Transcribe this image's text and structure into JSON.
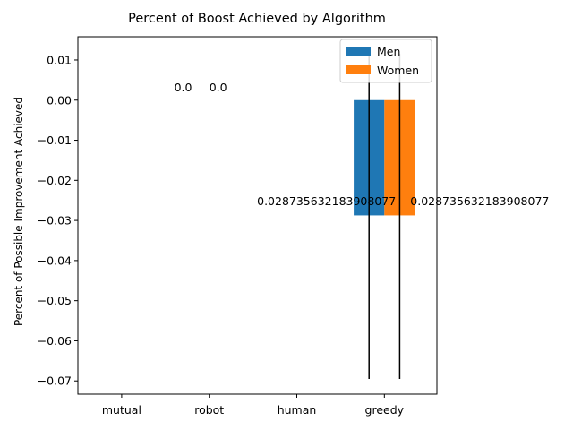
{
  "chart_data": {
    "type": "bar",
    "title": "Percent of Boost Achieved by Algorithm",
    "xlabel": "",
    "ylabel": "Percent of Possible Improvement Achieved",
    "categories": [
      "mutual",
      "robot",
      "human",
      "greedy"
    ],
    "series": [
      {
        "name": "Men",
        "color": "#1f77b4",
        "values": [
          null,
          null,
          null,
          -0.028735632183908077
        ],
        "error_low": [
          null,
          null,
          null,
          -0.0695
        ],
        "error_high": [
          null,
          null,
          null,
          0.0115
        ]
      },
      {
        "name": "Women",
        "color": "#ff7f0e",
        "values": [
          null,
          null,
          null,
          -0.028735632183908077
        ],
        "error_low": [
          null,
          null,
          null,
          -0.0695
        ],
        "error_high": [
          null,
          null,
          null,
          0.0115
        ]
      }
    ],
    "annotations": [
      {
        "text": "0.0",
        "x": 0.6,
        "y": 0.0022
      },
      {
        "text": "0.0",
        "x": 1.0,
        "y": 0.0022
      },
      {
        "text": "-0.028735632183908077",
        "x": 1.5,
        "y": -0.0262
      },
      {
        "text": "-0.028735632183908077",
        "x": 3.25,
        "y": -0.0262
      }
    ],
    "yticks": [
      0.01,
      0.0,
      -0.01,
      -0.02,
      -0.03,
      -0.04,
      -0.05,
      -0.06,
      -0.07
    ],
    "ytick_labels": [
      "0.01",
      "0.00",
      "−0.01",
      "−0.02",
      "−0.03",
      "−0.04",
      "−0.05",
      "−0.06",
      "−0.07"
    ],
    "xlim": [
      -0.5,
      3.6
    ],
    "ylim": [
      -0.0733,
      0.0158
    ],
    "grid": false,
    "legend": "top-right"
  }
}
